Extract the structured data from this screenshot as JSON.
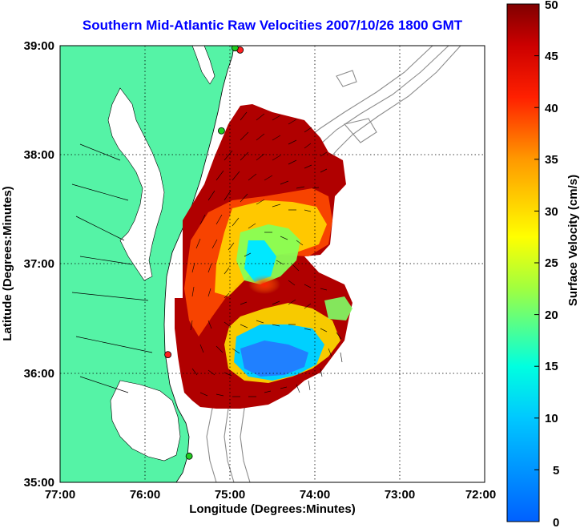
{
  "title": "Southern Mid-Atlantic Raw Velocities 2007/10/26 1800 GMT",
  "xlabel": "Longitude (Degrees:Minutes)",
  "ylabel": "Latitude (Degrees:Minutes)",
  "x_ticks": [
    "77:00",
    "76:00",
    "75:00",
    "74:00",
    "73:00",
    "72:00"
  ],
  "y_ticks": [
    "39:00",
    "38:00",
    "37:00",
    "36:00",
    "35:00"
  ],
  "colorbar": {
    "label": "Surface Velocity (cm/s)",
    "ticks": [
      "50",
      "45",
      "40",
      "35",
      "30",
      "25",
      "20",
      "15",
      "10",
      "5",
      "0"
    ],
    "min": 0,
    "max": 50
  },
  "colors": {
    "land": "#55f3a6",
    "coast": "#000000",
    "bathymetry": "#8c8c8c",
    "title": "#0000ff",
    "station_green": "#22cc22",
    "station_red": "#ff2020"
  },
  "extent": {
    "lon_min": -77,
    "lon_max": -72,
    "lat_min": 35,
    "lat_max": 39
  },
  "stations": [
    {
      "lon": -74.88,
      "lat": 38.96,
      "color": "red"
    },
    {
      "lon": -74.94,
      "lat": 38.98,
      "color": "green"
    },
    {
      "lon": -75.1,
      "lat": 38.22,
      "color": "green"
    },
    {
      "lon": -75.73,
      "lat": 36.17,
      "color": "red"
    },
    {
      "lon": -75.48,
      "lat": 35.24,
      "color": "green"
    }
  ]
}
